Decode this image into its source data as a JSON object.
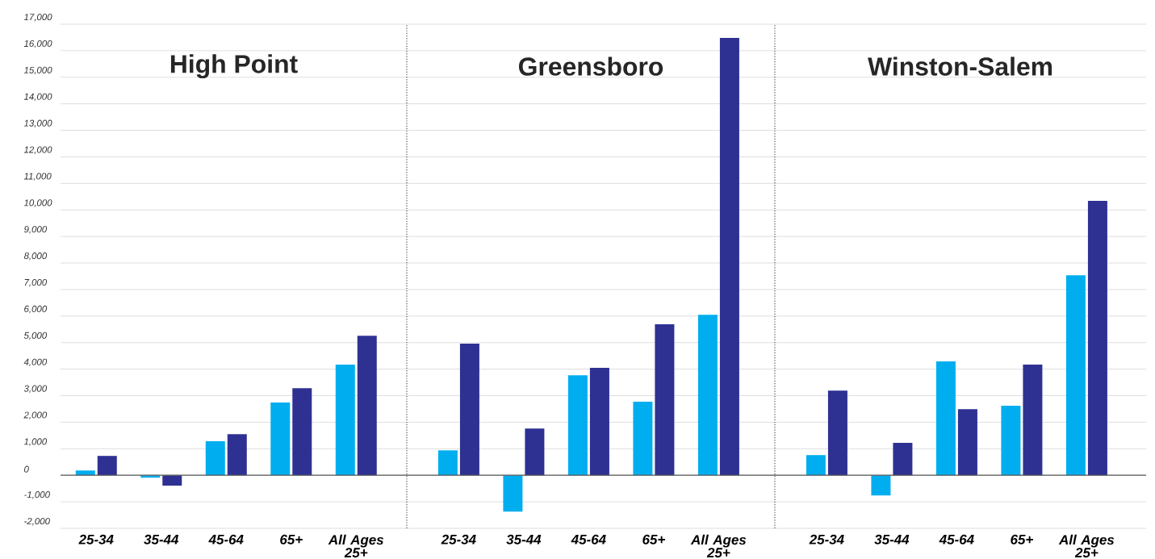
{
  "chart_data": [
    {
      "type": "bar",
      "title": "High Point",
      "categories": [
        "25-34",
        "35-44",
        "45-64",
        "65+",
        "All Ages 25+"
      ],
      "series": [
        {
          "color": "#00aeef",
          "values": [
            180,
            -90,
            1280,
            2740,
            4170
          ]
        },
        {
          "color": "#2e3192",
          "values": [
            730,
            -390,
            1550,
            3280,
            5260
          ]
        }
      ],
      "ylim": [
        -2000,
        17000
      ],
      "yticks": [
        {
          "value": -2000,
          "label": "-2,000"
        },
        {
          "value": -1000,
          "label": "-1,000"
        },
        0,
        {
          "value": 1000,
          "label": "1,000"
        },
        {
          "value": 2000,
          "label": "2,000"
        },
        {
          "value": 3000,
          "label": "3,000"
        },
        {
          "value": 4000,
          "label": "4,000"
        },
        {
          "value": 5000,
          "label": "5,000"
        },
        {
          "value": 6000,
          "label": "6,000"
        },
        {
          "value": 7000,
          "label": "7,000"
        },
        {
          "value": 8000,
          "label": "8,000"
        },
        {
          "value": 9000,
          "label": "9,000"
        },
        {
          "value": 10000,
          "label": "10,000"
        },
        {
          "value": 11000,
          "label": "11,000"
        },
        {
          "value": 12000,
          "label": "12,000"
        },
        {
          "value": 13000,
          "label": "13,000"
        },
        {
          "value": 14000,
          "label": "14,000"
        },
        {
          "value": 15000,
          "label": "15,000"
        },
        {
          "value": 16000,
          "label": "16,000"
        },
        {
          "value": 17000,
          "label": "17,000"
        }
      ],
      "grid": "y"
    },
    {
      "type": "bar",
      "title": "Greensboro",
      "categories": [
        "25-34",
        "35-44",
        "45-64",
        "65+",
        "All Ages 25+"
      ],
      "series": [
        {
          "color": "#00aeef",
          "values": [
            940,
            -1370,
            3770,
            2770,
            6050
          ]
        },
        {
          "color": "#2e3192",
          "values": [
            4960,
            1760,
            4050,
            5690,
            16480
          ]
        }
      ],
      "ylim": [
        -2000,
        17000
      ],
      "grid": "y",
      "tick_labels": "x"
    },
    {
      "type": "bar",
      "title": "Winston-Salem",
      "categories": [
        "25-34",
        "35-44",
        "45-64",
        "65+",
        "All Ages 25+"
      ],
      "series": [
        {
          "color": "#00aeef",
          "values": [
            760,
            -760,
            4290,
            2620,
            7540
          ]
        },
        {
          "color": "#2e3192",
          "values": [
            3190,
            1220,
            2490,
            4170,
            10340
          ]
        }
      ],
      "ylim": [
        -2000,
        17000
      ],
      "grid": "y",
      "tick_labels": "x"
    }
  ]
}
